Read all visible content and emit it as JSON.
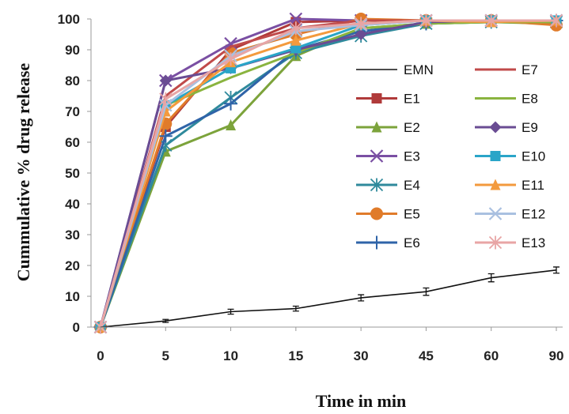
{
  "chart_data": {
    "type": "line",
    "xlabel": "Time in min",
    "ylabel": "Cummulative % drug release",
    "categories": [
      "0",
      "5",
      "10",
      "15",
      "30",
      "45",
      "60",
      "90"
    ],
    "ylim": [
      0,
      100
    ],
    "yticks": [
      0,
      10,
      20,
      30,
      40,
      50,
      60,
      70,
      80,
      90,
      100
    ],
    "grid": false,
    "legend_position": "right",
    "series": [
      {
        "name": "EMN",
        "color": "#111111",
        "marker": "none",
        "values": [
          0,
          2,
          5,
          6,
          9.5,
          11.5,
          16,
          18.5
        ],
        "errors": [
          0,
          0.5,
          0.8,
          0.8,
          1,
          1.2,
          1.3,
          1
        ]
      },
      {
        "name": "E1",
        "color": "#b03a3a",
        "marker": "square",
        "values": [
          0,
          65,
          90,
          99,
          99.5,
          99.5,
          99.5,
          99
        ]
      },
      {
        "name": "E2",
        "color": "#7ca33b",
        "marker": "triangle",
        "values": [
          0,
          57,
          65.5,
          88,
          97,
          98.5,
          99,
          98.5
        ]
      },
      {
        "name": "E3",
        "color": "#7a4fa3",
        "marker": "x",
        "values": [
          0,
          80,
          92,
          100,
          99.5,
          99.5,
          99.5,
          99.5
        ]
      },
      {
        "name": "E4",
        "color": "#2f8a9c",
        "marker": "asterisk",
        "values": [
          0,
          59,
          74.5,
          89,
          94.5,
          98.5,
          99,
          99
        ]
      },
      {
        "name": "E5",
        "color": "#e07b2a",
        "marker": "circle",
        "values": [
          0,
          66,
          89,
          95,
          100,
          99.5,
          99.5,
          98
        ]
      },
      {
        "name": "E6",
        "color": "#2f64a8",
        "marker": "plus",
        "values": [
          0,
          62,
          72.5,
          90,
          96,
          98.5,
          99.5,
          99.5
        ]
      },
      {
        "name": "E7",
        "color": "#c04a4a",
        "marker": "none",
        "values": [
          0,
          75,
          91,
          97,
          99.5,
          99.5,
          99.5,
          99
        ]
      },
      {
        "name": "E8",
        "color": "#8ab43f",
        "marker": "none",
        "values": [
          0,
          72,
          81,
          89,
          97,
          98.5,
          99,
          99
        ]
      },
      {
        "name": "E9",
        "color": "#6a4c93",
        "marker": "diamond",
        "values": [
          0,
          80,
          84,
          90,
          95,
          99,
          99.5,
          99.5
        ]
      },
      {
        "name": "E10",
        "color": "#2aa5c8",
        "marker": "square",
        "values": [
          0,
          72,
          84,
          90.5,
          98,
          99.5,
          99.5,
          99.5
        ]
      },
      {
        "name": "E11",
        "color": "#f39a3d",
        "marker": "triangle",
        "values": [
          0,
          70,
          86,
          93,
          98.5,
          99.5,
          99,
          99.5
        ]
      },
      {
        "name": "E12",
        "color": "#a9c0e0",
        "marker": "x",
        "values": [
          0,
          72,
          88,
          96,
          98,
          99.5,
          99.5,
          99.5
        ]
      },
      {
        "name": "E13",
        "color": "#e8a5a5",
        "marker": "asterisk",
        "values": [
          0,
          74,
          87,
          97,
          98.5,
          99.5,
          99.5,
          99.5
        ]
      }
    ]
  }
}
